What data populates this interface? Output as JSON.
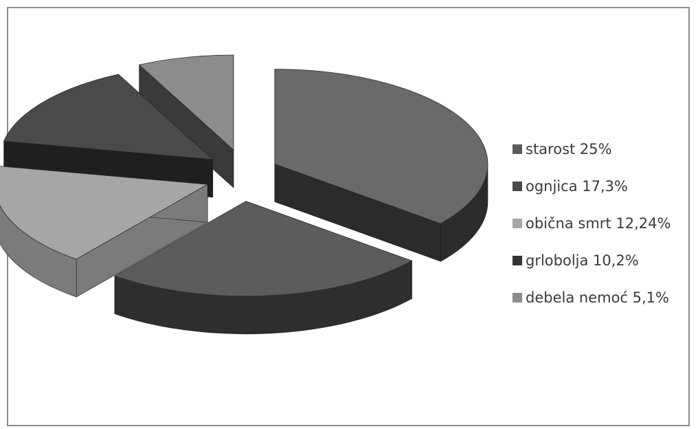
{
  "chart_data": {
    "type": "pie",
    "style": "3d exploded",
    "title": "",
    "slices": [
      {
        "label": "starost 25%",
        "value": 25,
        "color": "#6a6a6a",
        "side_color": "#2b2b2b"
      },
      {
        "label": "ognjica 17,3%",
        "value": 17.3,
        "color": "#5c5c5c",
        "side_color": "#2e2e2e"
      },
      {
        "label": "obična smrt 12,24%",
        "value": 12.24,
        "color": "#a6a6a6",
        "side_color": "#7b7b7b"
      },
      {
        "label": "grlobolja 10,2%",
        "value": 10.2,
        "color": "#4a4a4a",
        "side_color": "#1f1f1f"
      },
      {
        "label": "debela nemoć 5,1%",
        "value": 5.1,
        "color": "#8c8c8c",
        "side_color": "#3a3a3a"
      }
    ],
    "legend_position": "right"
  }
}
